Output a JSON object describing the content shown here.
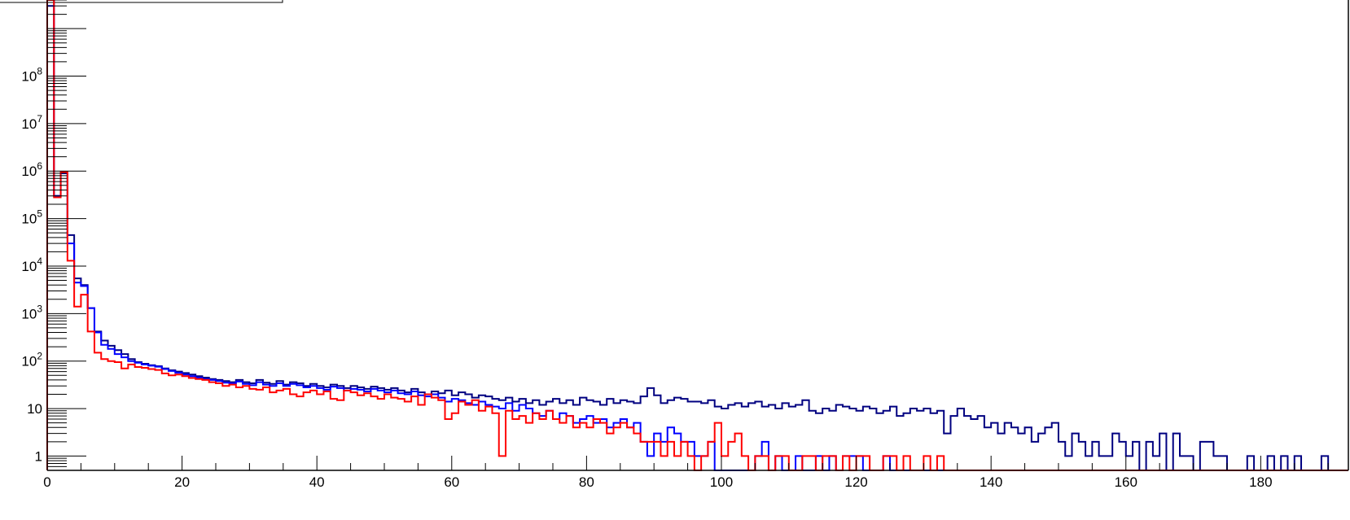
{
  "colors": {
    "series_navy": "#000080",
    "series_blue": "#0000ff",
    "series_red": "#ff0000",
    "axis": "#000000",
    "background": "#ffffff"
  },
  "chart_data": {
    "type": "line",
    "title": "",
    "xlabel": "",
    "ylabel": "",
    "yscale": "log",
    "xlim": [
      0,
      193
    ],
    "ylim": [
      0.5,
      4000000000
    ],
    "grid": false,
    "x_tick_labels": [
      "0",
      "20",
      "40",
      "60",
      "80",
      "100",
      "120",
      "140",
      "160",
      "180"
    ],
    "x_tick_values": [
      0,
      20,
      40,
      60,
      80,
      100,
      120,
      140,
      160,
      180
    ],
    "y_tick_labels": [
      {
        "base": "1",
        "exp": "",
        "value": 1
      },
      {
        "base": "10",
        "exp": "",
        "value": 10
      },
      {
        "base": "10",
        "exp": "2",
        "value": 100
      },
      {
        "base": "10",
        "exp": "3",
        "value": 1000
      },
      {
        "base": "10",
        "exp": "4",
        "value": 10000
      },
      {
        "base": "10",
        "exp": "5",
        "value": 100000
      },
      {
        "base": "10",
        "exp": "6",
        "value": 1000000
      },
      {
        "base": "10",
        "exp": "7",
        "value": 10000000
      },
      {
        "base": "10",
        "exp": "8",
        "value": 100000000
      }
    ],
    "bin_width": 1,
    "x_start": 0,
    "series": [
      {
        "color": "#000080",
        "values": [
          4000000000,
          300000,
          900000,
          45000,
          5500,
          4000,
          1300,
          420,
          270,
          210,
          170,
          140,
          110,
          95,
          88,
          82,
          78,
          70,
          64,
          60,
          56,
          52,
          48,
          45,
          42,
          40,
          38,
          36,
          40,
          36,
          34,
          40,
          35,
          33,
          38,
          32,
          36,
          34,
          30,
          33,
          30,
          28,
          32,
          30,
          27,
          30,
          28,
          26,
          29,
          27,
          25,
          27,
          24,
          22,
          26,
          22,
          20,
          23,
          21,
          24,
          19,
          22,
          20,
          17,
          19,
          18,
          16,
          15,
          17,
          14,
          16,
          13,
          15,
          12,
          14,
          16,
          13,
          15,
          12,
          17,
          15,
          14,
          12,
          16,
          13,
          15,
          14,
          13,
          18,
          27,
          19,
          13,
          15,
          17,
          16,
          14,
          14,
          13,
          15,
          11,
          10,
          12,
          13,
          11,
          13,
          14,
          11,
          12,
          10,
          13,
          11,
          12,
          15,
          9,
          8,
          10,
          9,
          12,
          11,
          10,
          9,
          11,
          10,
          8,
          9,
          11,
          7,
          8,
          10,
          9,
          10,
          8,
          9,
          3,
          7,
          10,
          7,
          6,
          7,
          4,
          5,
          3,
          5,
          4,
          3,
          4,
          2,
          3,
          4,
          5,
          2,
          1,
          3,
          2,
          1,
          2,
          1,
          1,
          3,
          2,
          1,
          2,
          0,
          2,
          1,
          3,
          0,
          3,
          1,
          1,
          0,
          2,
          2,
          1,
          1,
          0,
          0,
          0,
          1,
          0,
          0,
          1,
          0,
          1,
          0,
          1,
          0,
          0,
          0,
          1,
          0,
          0,
          0
        ]
      },
      {
        "color": "#0000ff",
        "values": [
          3000000000,
          300000,
          900000,
          30000,
          4500,
          3800,
          1300,
          400,
          220,
          180,
          140,
          120,
          100,
          92,
          85,
          80,
          76,
          68,
          62,
          57,
          52,
          48,
          45,
          42,
          40,
          38,
          35,
          34,
          37,
          33,
          31,
          36,
          32,
          30,
          34,
          30,
          33,
          31,
          28,
          30,
          27,
          25,
          29,
          27,
          24,
          26,
          25,
          23,
          26,
          24,
          22,
          24,
          21,
          20,
          23,
          19,
          18,
          20,
          17,
          14,
          16,
          15,
          13,
          12,
          14,
          12,
          11,
          10,
          13,
          9,
          12,
          10,
          8,
          7,
          9,
          6,
          8,
          7,
          5,
          6,
          7,
          5,
          6,
          4,
          5,
          6,
          4,
          5,
          2,
          1,
          3,
          2,
          4,
          3,
          2,
          2,
          1,
          1,
          2,
          0,
          0,
          0,
          0,
          0,
          0,
          1,
          2,
          0,
          1,
          0,
          0,
          1,
          0,
          0,
          1,
          0,
          1,
          0,
          1,
          1,
          1,
          0,
          0,
          0,
          1,
          0,
          0,
          0,
          0,
          0,
          0,
          0,
          0,
          0,
          0,
          0,
          0,
          0,
          0,
          0,
          0,
          0,
          0,
          0,
          0,
          0,
          0,
          0,
          0,
          0,
          0,
          0,
          0,
          0,
          0,
          0,
          0,
          0,
          0,
          0,
          0,
          0,
          0,
          0,
          0,
          0,
          0,
          0,
          0,
          0,
          0,
          0,
          0,
          0,
          0,
          0,
          0,
          0,
          0,
          0,
          0,
          0,
          0,
          0,
          0,
          0,
          0,
          0,
          0,
          0,
          0,
          0,
          0
        ]
      },
      {
        "color": "#ff0000",
        "values": [
          4000000000,
          280000,
          950000,
          13000,
          1400,
          2500,
          420,
          150,
          110,
          100,
          95,
          70,
          85,
          75,
          72,
          68,
          65,
          55,
          50,
          52,
          48,
          44,
          42,
          40,
          36,
          34,
          30,
          32,
          28,
          30,
          26,
          25,
          28,
          22,
          24,
          26,
          20,
          18,
          22,
          24,
          20,
          23,
          16,
          15,
          24,
          22,
          19,
          21,
          18,
          16,
          20,
          17,
          16,
          14,
          18,
          12,
          20,
          17,
          15,
          6,
          8,
          14,
          12,
          15,
          9,
          11,
          8,
          1,
          9,
          6,
          7,
          5,
          8,
          6,
          9,
          6,
          5,
          7,
          4,
          5,
          4,
          6,
          5,
          3,
          4,
          5,
          4,
          3,
          2,
          2,
          2,
          1,
          2,
          1,
          2,
          1,
          0,
          1,
          2,
          5,
          1,
          2,
          3,
          1,
          0,
          1,
          1,
          0,
          1,
          1,
          0,
          0,
          1,
          1,
          0,
          1,
          1,
          0,
          1,
          0,
          1,
          1,
          0,
          0,
          1,
          1,
          0,
          1,
          0,
          0,
          1,
          0,
          1,
          0,
          0,
          0,
          0,
          0,
          0,
          0,
          0,
          0,
          0,
          0,
          0,
          0,
          0,
          0,
          0,
          0,
          0,
          0,
          0,
          0,
          0,
          0,
          0,
          0,
          0,
          0,
          0,
          0,
          0,
          0,
          0,
          0,
          0,
          0,
          0,
          0,
          0,
          0,
          0,
          0,
          0,
          0,
          0,
          0,
          0,
          0,
          0,
          0,
          0,
          0,
          0,
          0,
          0,
          0,
          0,
          0,
          0,
          0,
          0
        ]
      }
    ]
  }
}
